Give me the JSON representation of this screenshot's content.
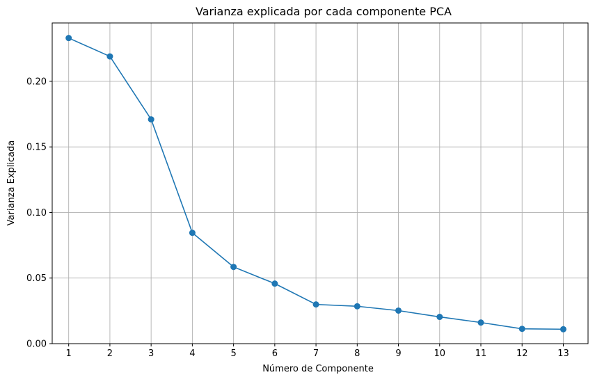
{
  "chart_data": {
    "type": "line",
    "title": "Varianza explicada por cada componente PCA",
    "xlabel": "Número de Componente",
    "ylabel": "Varianza Explicada",
    "x": [
      1,
      2,
      3,
      4,
      5,
      6,
      7,
      8,
      9,
      10,
      11,
      12,
      13
    ],
    "series": [
      {
        "values": [
          0.233,
          0.219,
          0.171,
          0.0845,
          0.0585,
          0.0458,
          0.0299,
          0.0285,
          0.0252,
          0.0204,
          0.0161,
          0.0113,
          0.011
        ]
      }
    ],
    "xticks": [
      "1",
      "2",
      "3",
      "4",
      "5",
      "6",
      "7",
      "8",
      "9",
      "10",
      "11",
      "12",
      "13"
    ],
    "yticks": [
      {
        "value": 0.0,
        "label": "0.00"
      },
      {
        "value": 0.05,
        "label": "0.05"
      },
      {
        "value": 0.1,
        "label": "0.10"
      },
      {
        "value": 0.15,
        "label": "0.15"
      },
      {
        "value": 0.2,
        "label": "0.20"
      }
    ],
    "xlim": [
      0.6,
      13.6
    ],
    "ylim": [
      0,
      0.2445
    ],
    "grid": true,
    "marker": "circle",
    "color": "#1f77b4",
    "grid_color": "#b0b0b0"
  }
}
